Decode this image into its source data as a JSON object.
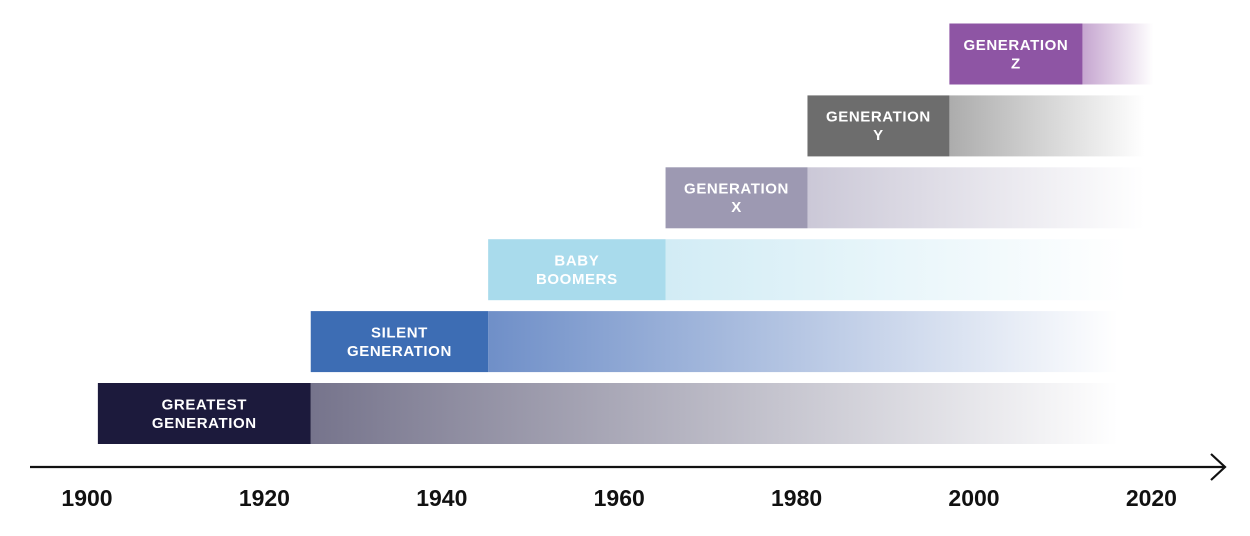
{
  "chart_data": {
    "type": "timeline",
    "title": "",
    "xlabel": "",
    "ylabel": "",
    "axis_range": [
      1900,
      2025
    ],
    "ticks": [
      "1900",
      "1920",
      "1940",
      "1960",
      "1980",
      "2000",
      "2020"
    ],
    "tick_values": [
      1900,
      1920,
      1940,
      1960,
      1980,
      2000,
      2020
    ],
    "generations": [
      {
        "name": "greatest",
        "label_lines": [
          "GREATEST",
          "GENERATION"
        ],
        "start": 1901,
        "end": 1925,
        "fade_end": 2016,
        "color": "#1c1a3c",
        "fade_color": "#76748c"
      },
      {
        "name": "silent",
        "label_lines": [
          "SILENT",
          "GENERATION"
        ],
        "start": 1925,
        "end": 1945,
        "fade_end": 2016,
        "color": "#3d6db4",
        "fade_color": "#6f8fc8"
      },
      {
        "name": "boomers",
        "label_lines": [
          "BABY",
          "BOOMERS"
        ],
        "start": 1945,
        "end": 1965,
        "fade_end": 2017,
        "color": "#a9dbec",
        "fade_color": "#d2ecf5"
      },
      {
        "name": "gen-x",
        "label_lines": [
          "GENERATION",
          "X"
        ],
        "start": 1965,
        "end": 1981,
        "fade_end": 2019,
        "color": "#9d99b2",
        "fade_color": "#cbc8d7"
      },
      {
        "name": "gen-y",
        "label_lines": [
          "GENERATION",
          "Y"
        ],
        "start": 1981,
        "end": 1997,
        "fade_end": 2019,
        "color": "#6d6d6d",
        "fade_color": "#acacac"
      },
      {
        "name": "gen-z",
        "label_lines": [
          "GENERATION",
          "Z"
        ],
        "start": 1997,
        "end": 2012,
        "fade_end": 2020,
        "color": "#8e55a4",
        "fade_color": "#c6a6d0"
      }
    ]
  }
}
